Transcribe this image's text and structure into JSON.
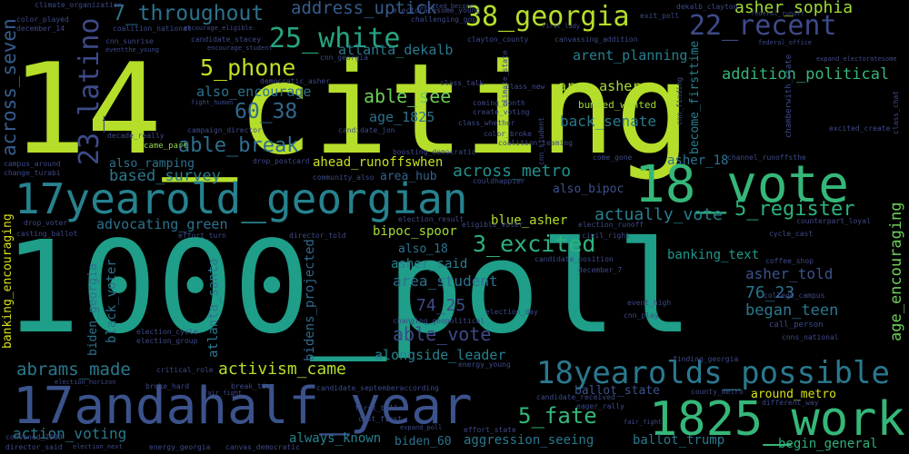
{
  "words": [
    {
      "text": "14_citing",
      "color": "#b5de2b"
    },
    {
      "text": "1000_poll",
      "color": "#1f9e89"
    },
    {
      "text": "17yearold_georgian",
      "color": "#26828e"
    },
    {
      "text": "17andahalf_year",
      "color": "#3b528b"
    },
    {
      "text": "1825_work",
      "color": "#35b779"
    },
    {
      "text": "18_vote",
      "color": "#35b779"
    },
    {
      "text": "18yearolds_possible",
      "color": "#2a788e"
    },
    {
      "text": "38_georgia",
      "color": "#b5de2b"
    },
    {
      "text": "25_white",
      "color": "#26a482"
    },
    {
      "text": "22_recent",
      "color": "#3e4a89"
    },
    {
      "text": "23_latino",
      "color": "#3e4a89"
    },
    {
      "text": "7_throughout",
      "color": "#2c728e"
    },
    {
      "text": "5_phone",
      "color": "#c2df23"
    },
    {
      "text": "asher_sophia",
      "color": "#a0da39"
    },
    {
      "text": "addition_political",
      "color": "#35b779"
    },
    {
      "text": "address_uptick",
      "color": "#365c8d"
    },
    {
      "text": "able_see",
      "color": "#6ece58"
    },
    {
      "text": "able_break",
      "color": "#2e6f8e"
    },
    {
      "text": "60_38",
      "color": "#31688e"
    },
    {
      "text": "atlanta_dekalb",
      "color": "#2a788e"
    },
    {
      "text": "arent_planning",
      "color": "#277f8e"
    },
    {
      "text": "area_asher",
      "color": "#a8db34"
    },
    {
      "text": "age_1825",
      "color": "#2d708e"
    },
    {
      "text": "back_senate",
      "color": "#2a788e"
    },
    {
      "text": "also_encourage",
      "color": "#2c728e"
    },
    {
      "text": "across_seven",
      "color": "#365c8d"
    },
    {
      "text": "across_metro",
      "color": "#20928c"
    },
    {
      "text": "ahead_runoffswhen",
      "color": "#c8e020"
    },
    {
      "text": "area_hub",
      "color": "#34618d"
    },
    {
      "text": "based_survey",
      "color": "#2a788e"
    },
    {
      "text": "also_ramping",
      "color": "#2c728e"
    },
    {
      "text": "5_register",
      "color": "#2db27d"
    },
    {
      "text": "actually_vote",
      "color": "#277f8e"
    },
    {
      "text": "advocating_green",
      "color": "#2c728e"
    },
    {
      "text": "blue_asher",
      "color": "#b5de2b"
    },
    {
      "text": "3_excited",
      "color": "#2db27d"
    },
    {
      "text": "bipoc_spoor",
      "color": "#a2da37"
    },
    {
      "text": "banking_text",
      "color": "#1f988b"
    },
    {
      "text": "asher_told",
      "color": "#3b528b"
    },
    {
      "text": "76_23",
      "color": "#2c728e"
    },
    {
      "text": "began_teen",
      "color": "#2a788e"
    },
    {
      "text": "area_student",
      "color": "#2c728e"
    },
    {
      "text": "74_25",
      "color": "#3e4a89"
    },
    {
      "text": "able_vote",
      "color": "#3e4a89"
    },
    {
      "text": "alongside_leader",
      "color": "#26828e"
    },
    {
      "text": "abrams_made",
      "color": "#2a788e"
    },
    {
      "text": "activism_came",
      "color": "#b5de2b"
    },
    {
      "text": "action_voting",
      "color": "#2a788e"
    },
    {
      "text": "always_known",
      "color": "#26828e"
    },
    {
      "text": "5_fate",
      "color": "#35b779"
    },
    {
      "text": "ballot_state",
      "color": "#3b528b"
    },
    {
      "text": "around_metro",
      "color": "#d8e219"
    },
    {
      "text": "ballot_trump",
      "color": "#2a788e"
    },
    {
      "text": "begin_general",
      "color": "#2db27d"
    },
    {
      "text": "biden_60",
      "color": "#2c728e"
    },
    {
      "text": "aggression_seeing",
      "color": "#2a788e"
    },
    {
      "text": "also_18",
      "color": "#2c728e"
    },
    {
      "text": "asher_said",
      "color": "#277f8e"
    },
    {
      "text": "asher_18",
      "color": "#2c728e"
    },
    {
      "text": "also_bipoc",
      "color": "#3b528b"
    },
    {
      "text": "age_encouraging",
      "color": "#6ece58"
    },
    {
      "text": "banking_encouraging",
      "color": "#d8e219"
    },
    {
      "text": "biden_georgia",
      "color": "#2c728e"
    },
    {
      "text": "black_voter",
      "color": "#2c728e"
    },
    {
      "text": "atlanta_santa",
      "color": "#2a788e"
    },
    {
      "text": "bidens_projected",
      "color": "#31688e"
    },
    {
      "text": "become_firsttime",
      "color": "#277f8e"
    },
    {
      "text": "bummed_wanted",
      "color": "#a2da37"
    },
    {
      "text": "came_part",
      "color": "#8fd744"
    },
    {
      "text": "climate_organization",
      "color": "#3e4a89"
    },
    {
      "text": "coalition_national",
      "color": "#3e4a89"
    },
    {
      "text": "cnn_sunrise",
      "color": "#3e4a89"
    },
    {
      "text": "candidate_stacey",
      "color": "#3e4a89"
    },
    {
      "text": "campaign_director",
      "color": "#3e4a89"
    },
    {
      "text": "color_played",
      "color": "#3e4a89"
    },
    {
      "text": "december_14",
      "color": "#3e4a89"
    },
    {
      "text": "campus_around",
      "color": "#3e4a89"
    },
    {
      "text": "change_turabi",
      "color": "#3e4a89"
    },
    {
      "text": "drop_voter",
      "color": "#3e4a89"
    },
    {
      "text": "casting_ballot",
      "color": "#3e4a89"
    },
    {
      "text": "convened_1000",
      "color": "#3e4a89"
    },
    {
      "text": "director_said",
      "color": "#3e4a89"
    },
    {
      "text": "encourage_eligible",
      "color": "#3e4a89"
    },
    {
      "text": "clayton_county",
      "color": "#3e4a89"
    },
    {
      "text": "cnn_georgia",
      "color": "#3e4a89"
    },
    {
      "text": "class_talk",
      "color": "#3e4a89"
    },
    {
      "text": "coming_month",
      "color": "#3e4a89"
    },
    {
      "text": "create_voting",
      "color": "#3e4a89"
    },
    {
      "text": "class_whether",
      "color": "#3e4a89"
    },
    {
      "text": "color_broke",
      "color": "#3e4a89"
    },
    {
      "text": "coalition_teaming",
      "color": "#3e4a89"
    },
    {
      "text": "boosting_democratic",
      "color": "#3e4a89"
    },
    {
      "text": "couldhappier",
      "color": "#3e4a89"
    },
    {
      "text": "candidate_jon",
      "color": "#3e4a89"
    },
    {
      "text": "decade_really",
      "color": "#3e4a89"
    },
    {
      "text": "drop_postcard",
      "color": "#3e4a89"
    },
    {
      "text": "community_also",
      "color": "#3e4a89"
    },
    {
      "text": "channel_runoffsthe",
      "color": "#3e4a89"
    },
    {
      "text": "counterpart_loyal",
      "color": "#3e4a89"
    },
    {
      "text": "cycle_cast",
      "color": "#3e4a89"
    },
    {
      "text": "coffee_shop",
      "color": "#3e4a89"
    },
    {
      "text": "college_campus",
      "color": "#3e4a89"
    },
    {
      "text": "call_person",
      "color": "#3e4a89"
    },
    {
      "text": "cnns_national",
      "color": "#3e4a89"
    },
    {
      "text": "civil_right",
      "color": "#3e4a89"
    },
    {
      "text": "candidate_position",
      "color": "#3e4a89"
    },
    {
      "text": "december_7",
      "color": "#3e4a89"
    },
    {
      "text": "event_high",
      "color": "#3e4a89"
    },
    {
      "text": "cnn_play",
      "color": "#3e4a89"
    },
    {
      "text": "changing_geopolitical",
      "color": "#3e4a89"
    },
    {
      "text": "election_day",
      "color": "#3e4a89"
    },
    {
      "text": "election_cycle",
      "color": "#3e4a89"
    },
    {
      "text": "election_group",
      "color": "#3e4a89"
    },
    {
      "text": "effort_turn",
      "color": "#3e4a89"
    },
    {
      "text": "director_told",
      "color": "#3e4a89"
    },
    {
      "text": "election_result",
      "color": "#3e4a89"
    },
    {
      "text": "election_runoff",
      "color": "#3e4a89"
    },
    {
      "text": "eligible_voter",
      "color": "#3e4a89"
    },
    {
      "text": "critical_role",
      "color": "#3e4a89"
    },
    {
      "text": "broke_hard",
      "color": "#3e4a89"
    },
    {
      "text": "break_tie",
      "color": "#3e4a89"
    },
    {
      "text": "candidate_septemberaccording",
      "color": "#3e4a89"
    },
    {
      "text": "candidate_received",
      "color": "#3e4a89"
    },
    {
      "text": "first_ballot",
      "color": "#3e4a89"
    },
    {
      "text": "cast_first",
      "color": "#3e4a89"
    },
    {
      "text": "eager_rally",
      "color": "#3e4a89"
    },
    {
      "text": "effort_state",
      "color": "#3e4a89"
    },
    {
      "text": "canvas_democratic",
      "color": "#3e4a89"
    },
    {
      "text": "energy_georgia",
      "color": "#3e4a89"
    },
    {
      "text": "county_metro",
      "color": "#3e4a89"
    },
    {
      "text": "different_way",
      "color": "#3e4a89"
    },
    {
      "text": "finding_georgia",
      "color": "#3e4a89"
    },
    {
      "text": "fair_fight",
      "color": "#3e4a89"
    },
    {
      "text": "energy_young",
      "color": "#3e4a89"
    },
    {
      "text": "challenging_gop",
      "color": "#3e4a89"
    },
    {
      "text": "electoratesome_young",
      "color": "#3e4a89"
    },
    {
      "text": "excited_become",
      "color": "#3e4a89"
    },
    {
      "text": "exit_poll",
      "color": "#3e4a89"
    },
    {
      "text": "first_lady",
      "color": "#3e4a89"
    },
    {
      "text": "dekalb_clayton",
      "color": "#3e4a89"
    },
    {
      "text": "federal_runoff",
      "color": "#3e4a89"
    },
    {
      "text": "federal_office",
      "color": "#3e4a89"
    },
    {
      "text": "expand_electoratesome",
      "color": "#3e4a89"
    },
    {
      "text": "canvassing_addition",
      "color": "#3e4a89"
    },
    {
      "text": "excited_create",
      "color": "#3e4a89"
    },
    {
      "text": "class_chat",
      "color": "#3e4a89"
    },
    {
      "text": "chamberwith_state",
      "color": "#3e4a89"
    },
    {
      "text": "climate_state",
      "color": "#3e4a89"
    },
    {
      "text": "class_new",
      "color": "#3e4a89"
    },
    {
      "text": "cnn_finding",
      "color": "#3e4a89"
    },
    {
      "text": "come_gone",
      "color": "#3e4a89"
    },
    {
      "text": "cnn_student",
      "color": "#3e4a89"
    },
    {
      "text": "fight_human",
      "color": "#3e4a89"
    },
    {
      "text": "encourage_student",
      "color": "#3e4a89"
    },
    {
      "text": "eventthe_young",
      "color": "#3e4a89"
    },
    {
      "text": "democratic_asher",
      "color": "#3e4a89"
    },
    {
      "text": "election_horizon",
      "color": "#3e4a89"
    },
    {
      "text": "election_next",
      "color": "#3e4a89"
    },
    {
      "text": "expand_poll",
      "color": "#3e4a89"
    },
    {
      "text": "fair_fight",
      "color": "#3e4a89"
    }
  ]
}
